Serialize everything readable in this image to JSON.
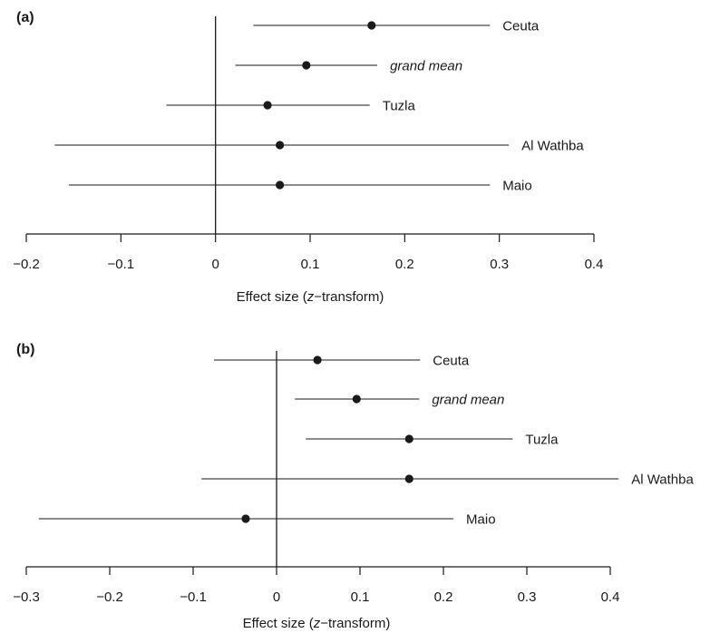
{
  "chart_data": [
    {
      "type": "forest",
      "panel_label": "(a)",
      "xlabel_prefix": "Effect size (",
      "xlabel_var": "z",
      "xlabel_suffix": "−transform)",
      "xlim": [
        -0.2,
        0.4
      ],
      "xticks": [
        -0.2,
        -0.1,
        0,
        0.1,
        0.2,
        0.3,
        0.4
      ],
      "xtick_labels": [
        "−0.2",
        "−0.1",
        "0",
        "0.1",
        "0.2",
        "0.3",
        "0.4"
      ],
      "reference_line": 0,
      "rows": [
        {
          "label": "Ceuta",
          "italic": false,
          "estimate": 0.165,
          "lower": 0.04,
          "upper": 0.29
        },
        {
          "label": "grand mean",
          "italic": true,
          "estimate": 0.096,
          "lower": 0.021,
          "upper": 0.171
        },
        {
          "label": "Tuzla",
          "italic": false,
          "estimate": 0.055,
          "lower": -0.052,
          "upper": 0.163
        },
        {
          "label": "Al Wathba",
          "italic": false,
          "estimate": 0.068,
          "lower": -0.17,
          "upper": 0.31
        },
        {
          "label": "Maio",
          "italic": false,
          "estimate": 0.068,
          "lower": -0.155,
          "upper": 0.29
        }
      ]
    },
    {
      "type": "forest",
      "panel_label": "(b)",
      "xlabel_prefix": "Effect size (",
      "xlabel_var": "z",
      "xlabel_suffix": "−transform)",
      "xlim": [
        -0.3,
        0.4
      ],
      "xticks": [
        -0.3,
        -0.2,
        -0.1,
        0,
        0.1,
        0.2,
        0.3,
        0.4
      ],
      "xtick_labels": [
        "−0.3",
        "−0.2",
        "−0.1",
        "0",
        "0.1",
        "0.2",
        "0.3",
        "0.4"
      ],
      "reference_line": 0,
      "rows": [
        {
          "label": "Ceuta",
          "italic": false,
          "estimate": 0.049,
          "lower": -0.075,
          "upper": 0.172
        },
        {
          "label": "grand mean",
          "italic": true,
          "estimate": 0.096,
          "lower": 0.022,
          "upper": 0.171
        },
        {
          "label": "Tuzla",
          "italic": false,
          "estimate": 0.159,
          "lower": 0.035,
          "upper": 0.283
        },
        {
          "label": "Al Wathba",
          "italic": false,
          "estimate": 0.159,
          "lower": -0.09,
          "upper": 0.41
        },
        {
          "label": "Maio",
          "italic": false,
          "estimate": -0.037,
          "lower": -0.285,
          "upper": 0.212
        }
      ]
    }
  ],
  "colors": {
    "ink": "#1a1a1a",
    "background": "#ffffff"
  }
}
